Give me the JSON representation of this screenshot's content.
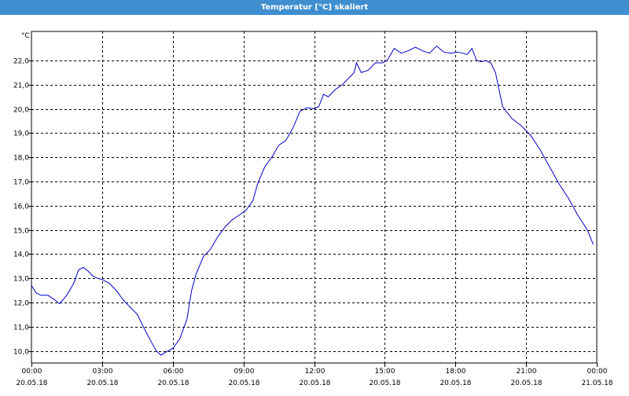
{
  "window": {
    "title": "Temperatur [°C] skaliert"
  },
  "colors": {
    "titlebar": "#3f8fd0",
    "line": "#0000c8",
    "grid": "#000000"
  },
  "chart_data": {
    "type": "line",
    "title": "Temperatur [°C] skaliert",
    "ylabel": "°C",
    "xlabel": "",
    "ylim": [
      9.5,
      23.2
    ],
    "xlim_hours": [
      0,
      24
    ],
    "grid": true,
    "y_ticks": [
      "22,0",
      "21,0",
      "20,0",
      "19,0",
      "18,0",
      "17,0",
      "16,0",
      "15,0",
      "14,0",
      "13,0",
      "12,0",
      "11,0",
      "10,0"
    ],
    "y_tick_values": [
      22,
      21,
      20,
      19,
      18,
      17,
      16,
      15,
      14,
      13,
      12,
      11,
      10
    ],
    "x_ticks": [
      {
        "time": "00:00",
        "date": "20.05.18"
      },
      {
        "time": "03:00",
        "date": "20.05.18"
      },
      {
        "time": "06:00",
        "date": "20.05.18"
      },
      {
        "time": "09:00",
        "date": "20.05.18"
      },
      {
        "time": "12:00",
        "date": "20.05.18"
      },
      {
        "time": "15:00",
        "date": "20.05.18"
      },
      {
        "time": "18:00",
        "date": "20.05.18"
      },
      {
        "time": "21:00",
        "date": "20.05.18"
      },
      {
        "time": "00:00",
        "date": "21.05.18"
      }
    ],
    "series": [
      {
        "x_hours": [
          0,
          0.2,
          0.4,
          0.7,
          1.0,
          1.2,
          1.5,
          1.8,
          2.0,
          2.2,
          2.4,
          2.6,
          2.8,
          3.0,
          3.3,
          3.6,
          3.9,
          4.2,
          4.5,
          4.8,
          5.1,
          5.3,
          5.5,
          5.7,
          6.0,
          6.3,
          6.6,
          6.8,
          7.0,
          7.3,
          7.6,
          7.9,
          8.2,
          8.5,
          8.8,
          9.1,
          9.4,
          9.6,
          9.9,
          10.2,
          10.5,
          10.8,
          11.1,
          11.4,
          11.7,
          12.0,
          12.2,
          12.4,
          12.6,
          12.9,
          13.2,
          13.5,
          13.7,
          13.8,
          14.0,
          14.3,
          14.6,
          14.9,
          15.1,
          15.4,
          15.7,
          16.0,
          16.3,
          16.6,
          16.9,
          17.2,
          17.5,
          17.8,
          18.1,
          18.3,
          18.5,
          18.7,
          18.9,
          19.1,
          19.3,
          19.5,
          19.7,
          20.0,
          20.4,
          20.8,
          21.2,
          21.6,
          22.0,
          22.4,
          22.8,
          23.2,
          23.6,
          23.85
        ],
        "y": [
          12.7,
          12.4,
          12.3,
          12.3,
          12.1,
          11.95,
          12.3,
          12.8,
          13.35,
          13.45,
          13.3,
          13.1,
          13.0,
          12.95,
          12.8,
          12.5,
          12.1,
          11.8,
          11.5,
          10.9,
          10.35,
          10.0,
          9.82,
          9.95,
          10.1,
          10.5,
          11.3,
          12.5,
          13.2,
          13.9,
          14.2,
          14.7,
          15.1,
          15.4,
          15.6,
          15.8,
          16.2,
          16.9,
          17.6,
          18.0,
          18.5,
          18.7,
          19.2,
          19.9,
          20.05,
          20.0,
          20.1,
          20.6,
          20.5,
          20.8,
          21.0,
          21.3,
          21.5,
          21.9,
          21.5,
          21.6,
          21.9,
          21.9,
          22.0,
          22.5,
          22.3,
          22.4,
          22.55,
          22.4,
          22.3,
          22.6,
          22.35,
          22.3,
          22.35,
          22.3,
          22.25,
          22.5,
          22.0,
          21.95,
          22.0,
          21.9,
          21.5,
          20.1,
          19.6,
          19.3,
          18.9,
          18.3,
          17.6,
          16.9,
          16.3,
          15.6,
          15.0,
          14.4
        ]
      }
    ]
  }
}
